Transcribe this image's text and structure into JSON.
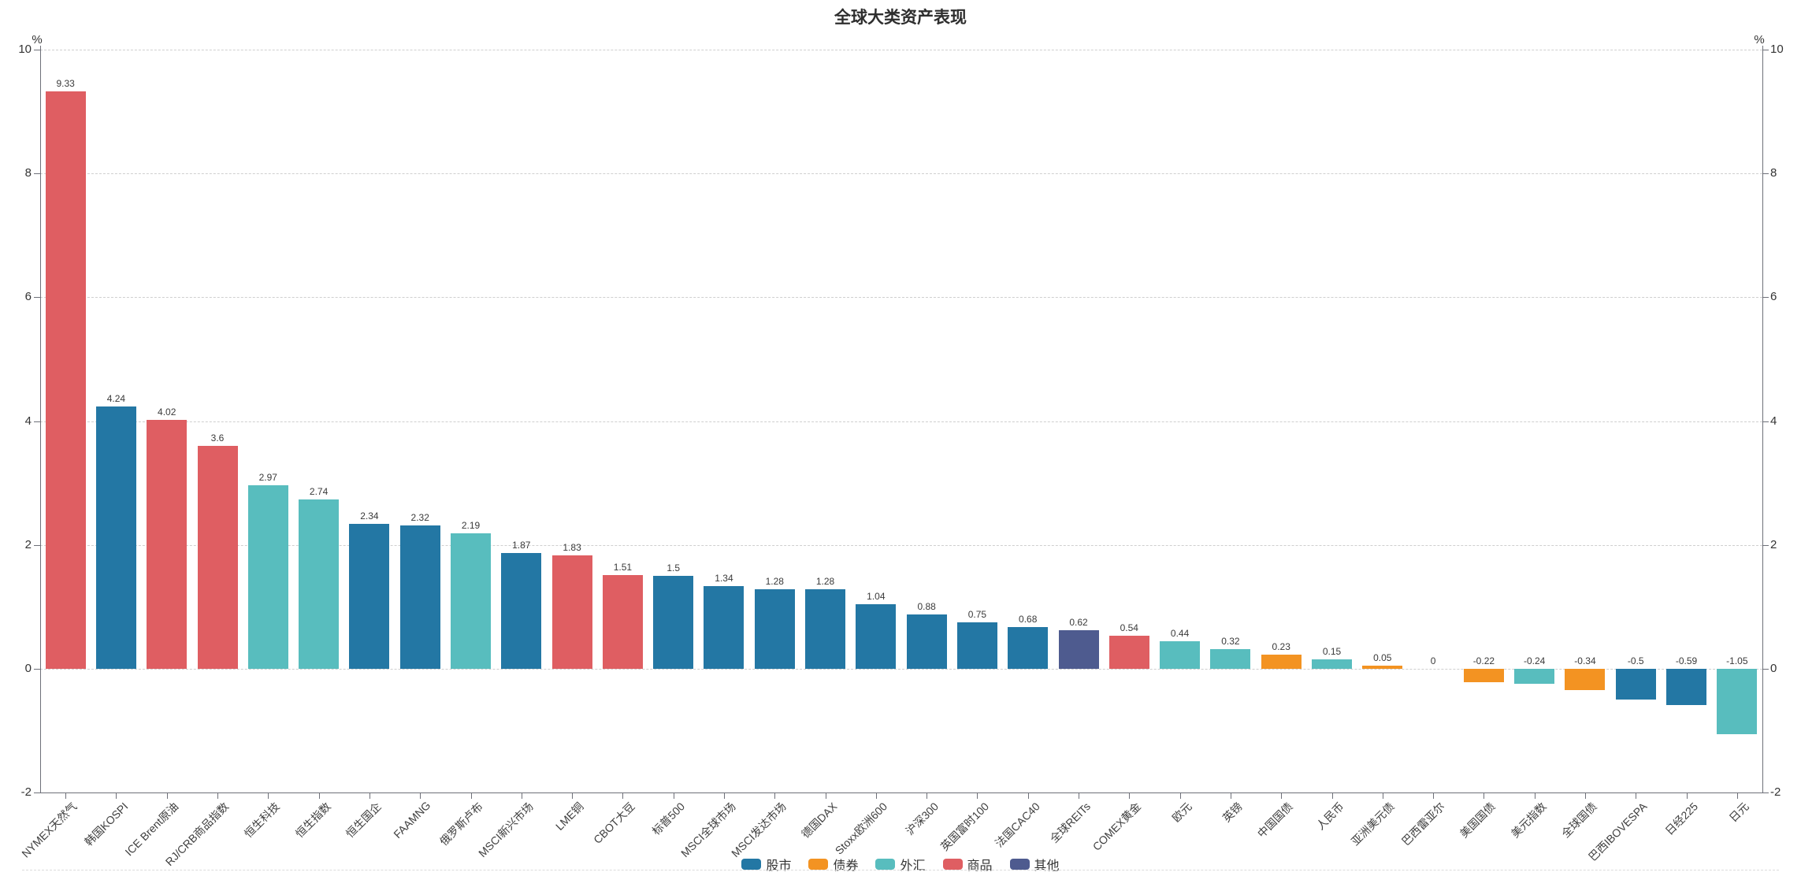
{
  "title": "全球大类资产表现",
  "palette": {
    "blue": "#2377a4",
    "orange": "#f39322",
    "teal": "#58bdbe",
    "red": "#df5e62",
    "purple": "#4e5b8f"
  },
  "legend": {
    "items": [
      {
        "label": "股市",
        "color": "blue"
      },
      {
        "label": "债券",
        "color": "orange"
      },
      {
        "label": "外汇",
        "color": "teal"
      },
      {
        "label": "商品",
        "color": "red"
      },
      {
        "label": "其他",
        "color": "purple"
      }
    ]
  },
  "chart_data": {
    "type": "bar",
    "title": "全球大类资产表现",
    "xlabel": "",
    "ylabel": "%",
    "ylim": [
      -2,
      10
    ],
    "yticks": [
      10,
      8,
      6,
      4,
      2,
      0,
      -2
    ],
    "grid": true,
    "legend_position": "bottom",
    "categories": [
      "NYMEX天然气",
      "韩国KOSPI",
      "ICE Brent原油",
      "RJ/CRB商品指数",
      "恒生科技",
      "恒生指数",
      "恒生国企",
      "FAAMNG",
      "俄罗斯卢布",
      "MSCI新兴市场",
      "LME铜",
      "CBOT大豆",
      "标普500",
      "MSCI全球市场",
      "MSCI发达市场",
      "德国DAX",
      "Stoxx欧洲600",
      "沪深300",
      "英国富时100",
      "法国CAC40",
      "全球REITs",
      "COMEX黄金",
      "欧元",
      "英镑",
      "中国国债",
      "人民币",
      "亚洲美元债",
      "巴西雷亚尔",
      "美国国债",
      "美元指数",
      "全球国债",
      "巴西IBOVESPA",
      "日经225",
      "日元"
    ],
    "values": [
      9.33,
      4.24,
      4.02,
      3.6,
      2.97,
      2.74,
      2.34,
      2.32,
      2.19,
      1.87,
      1.83,
      1.51,
      1.5,
      1.34,
      1.28,
      1.28,
      1.04,
      0.88,
      0.75,
      0.68,
      0.62,
      0.54,
      0.44,
      0.32,
      0.23,
      0.15,
      0.05,
      0,
      -0.22,
      -0.24,
      -0.34,
      -0.5,
      -0.59,
      -1.05
    ],
    "value_labels": [
      "9.33",
      "4.24",
      "4.02",
      "3.6",
      "2.97",
      "2.74",
      "2.34",
      "2.32",
      "2.19",
      "1.87",
      "1.83",
      "1.51",
      "1.5",
      "1.34",
      "1.28",
      "1.28",
      "1.04",
      "0.88",
      "0.75",
      "0.68",
      "0.62",
      "0.54",
      "0.44",
      "0.32",
      "0.23",
      "0.15",
      "0.05",
      "0",
      "-0.22",
      "-0.24",
      "-0.34",
      "-0.5",
      "-0.59",
      "-1.05"
    ],
    "colors": [
      "red",
      "blue",
      "red",
      "red",
      "teal",
      "teal",
      "blue",
      "blue",
      "teal",
      "blue",
      "red",
      "red",
      "blue",
      "blue",
      "blue",
      "blue",
      "blue",
      "blue",
      "blue",
      "blue",
      "purple",
      "red",
      "teal",
      "teal",
      "orange",
      "teal",
      "orange",
      "teal",
      "orange",
      "teal",
      "orange",
      "blue",
      "blue",
      "teal"
    ]
  }
}
